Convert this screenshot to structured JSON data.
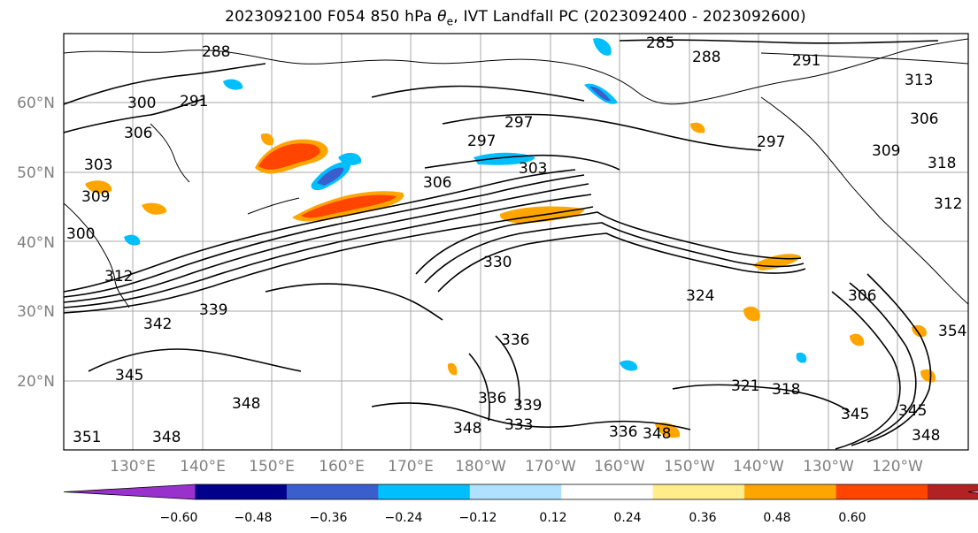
{
  "title": {
    "run": "2023092100 F054 850 hPa",
    "field_symbol": "θ",
    "field_sub": "e",
    "rest": ", IVT Landfall PC (2023092400 - 2023092600)"
  },
  "axes": {
    "lat_labels": [
      "60°N",
      "50°N",
      "40°N",
      "30°N",
      "20°N"
    ],
    "lon_labels": [
      "130°E",
      "140°E",
      "150°E",
      "160°E",
      "170°E",
      "180°W",
      "170°W",
      "160°W",
      "150°W",
      "140°W",
      "130°W",
      "120°W"
    ]
  },
  "colorbar": {
    "colors": [
      "#9932cc",
      "#00008b",
      "#3a5fcd",
      "#00bfff",
      "#b0e2ff",
      "#ffffff",
      "#ffec8b",
      "#ffa500",
      "#ff4500",
      "#b22222",
      "#ff82ab"
    ],
    "tick_labels": [
      "−0.60",
      "−0.48",
      "−0.36",
      "−0.24",
      "−0.12",
      "0.12",
      "0.24",
      "0.36",
      "0.48",
      "0.60"
    ],
    "extend": "both"
  },
  "contour_labels": [
    "288",
    "285",
    "288",
    "291",
    "313",
    "300",
    "291",
    "306",
    "303",
    "309",
    "297",
    "297",
    "297",
    "303",
    "306",
    "309",
    "306",
    "318",
    "312",
    "300",
    "312",
    "330",
    "324",
    "306",
    "342",
    "339",
    "336",
    "345",
    "348",
    "351",
    "348",
    "339",
    "336",
    "333",
    "348",
    "321",
    "318",
    "345",
    "345",
    "348",
    "354",
    "336",
    "348"
  ]
}
